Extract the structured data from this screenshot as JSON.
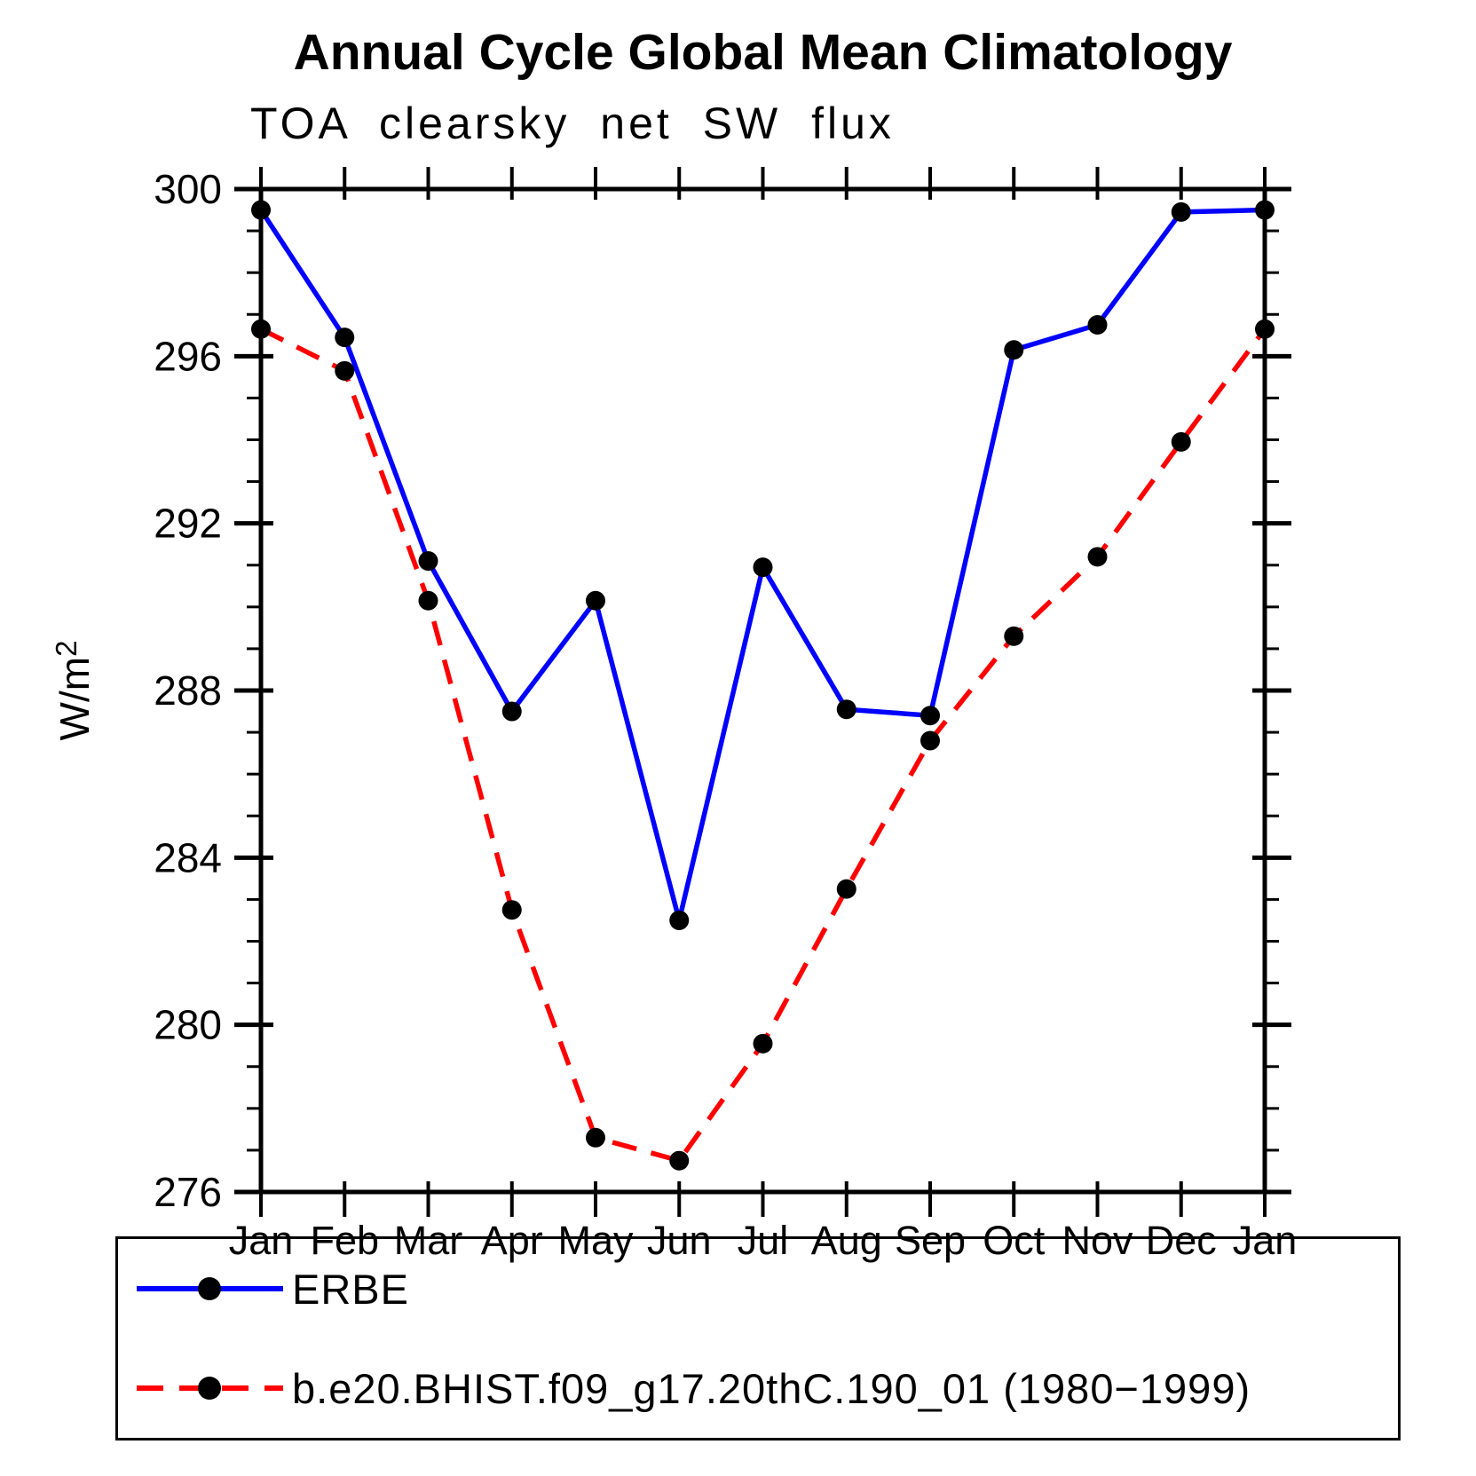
{
  "title": "Annual Cycle Global Mean Climatology",
  "chart_data": {
    "type": "line",
    "title": "Annual Cycle Global Mean Climatology",
    "subtitle": "TOA clearsky net SW flux",
    "ylabel": "W/m",
    "ylabel_superscript": "2",
    "categories": [
      "Jan",
      "Feb",
      "Mar",
      "Apr",
      "May",
      "Jun",
      "Jul",
      "Aug",
      "Sep",
      "Oct",
      "Nov",
      "Dec",
      "Jan"
    ],
    "ylim": [
      276,
      300
    ],
    "ytick_major_step": 4,
    "ytick_minor_step": 1,
    "ytick_labels": [
      "276",
      "280",
      "284",
      "288",
      "292",
      "296",
      "300"
    ],
    "grid": false,
    "legend_position": "bottom",
    "axis_color": "#000000",
    "marker_color": "#000000",
    "series": [
      {
        "name": "ERBE",
        "color": "#0000ff",
        "style": "solid",
        "marker": "circle",
        "values": [
          299.5,
          296.45,
          291.1,
          287.5,
          290.15,
          282.5,
          290.95,
          287.55,
          287.4,
          296.15,
          296.75,
          299.45,
          299.5
        ]
      },
      {
        "name": "b.e20.BHIST.f09_g17.20thC.190_01 (1980−1999)",
        "color": "#ff0000",
        "style": "dashed",
        "marker": "circle",
        "values": [
          296.65,
          295.65,
          290.15,
          282.75,
          277.3,
          276.75,
          279.55,
          283.25,
          286.8,
          289.3,
          291.2,
          293.95,
          296.65
        ]
      }
    ]
  }
}
